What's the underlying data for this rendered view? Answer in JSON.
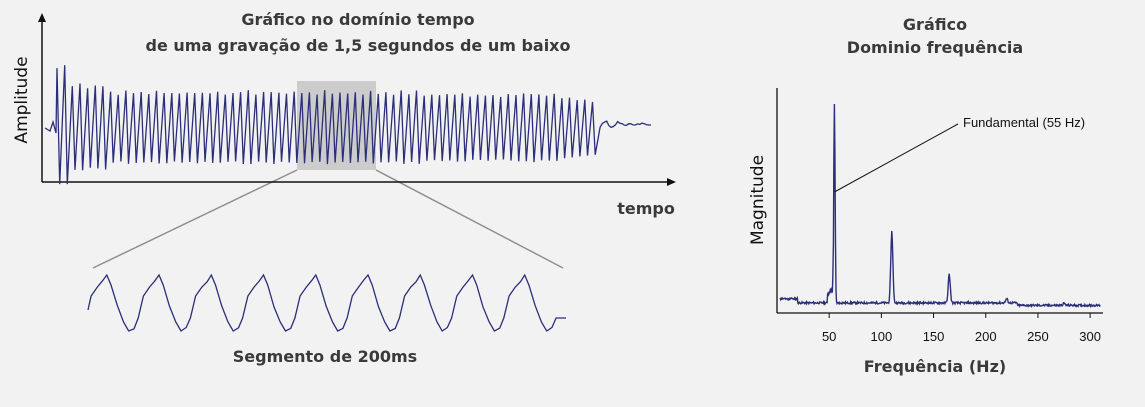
{
  "chart_data": [
    {
      "type": "line",
      "title_lines": [
        "Gráfico no domínio tempo",
        "de uma gravação de 1,5 segundos de um baixo"
      ],
      "xlabel": "tempo",
      "ylabel": "Amplitude",
      "grid": false,
      "highlight": {
        "label": ""
      },
      "inset": {
        "label": "Segmento de 200ms",
        "cycles": 9
      }
    },
    {
      "type": "line",
      "title_lines": [
        "Gráfico",
        "Dominio frequência"
      ],
      "xlabel": "Frequência (Hz)",
      "ylabel": "Magnitude",
      "xlim": [
        0,
        320
      ],
      "x_ticks": [
        50,
        100,
        150,
        200,
        250,
        300
      ],
      "x_tick_labels": [
        "50",
        "100",
        "150",
        "200",
        "250",
        "300"
      ],
      "grid": false,
      "peaks": [
        {
          "x": 55,
          "magnitude": 1.0
        },
        {
          "x": 110,
          "magnitude": 0.35
        },
        {
          "x": 165,
          "magnitude": 0.14
        },
        {
          "x": 220,
          "magnitude": 0.02
        },
        {
          "x": 275,
          "magnitude": 0.01
        }
      ],
      "annotation": {
        "text": "Fundamental (55 Hz)",
        "x": 55
      }
    }
  ],
  "colors": {
    "signal": "#2b2e78",
    "axis": "#111111",
    "highlight": "#cccccc",
    "connector": "#8f8f8f"
  }
}
